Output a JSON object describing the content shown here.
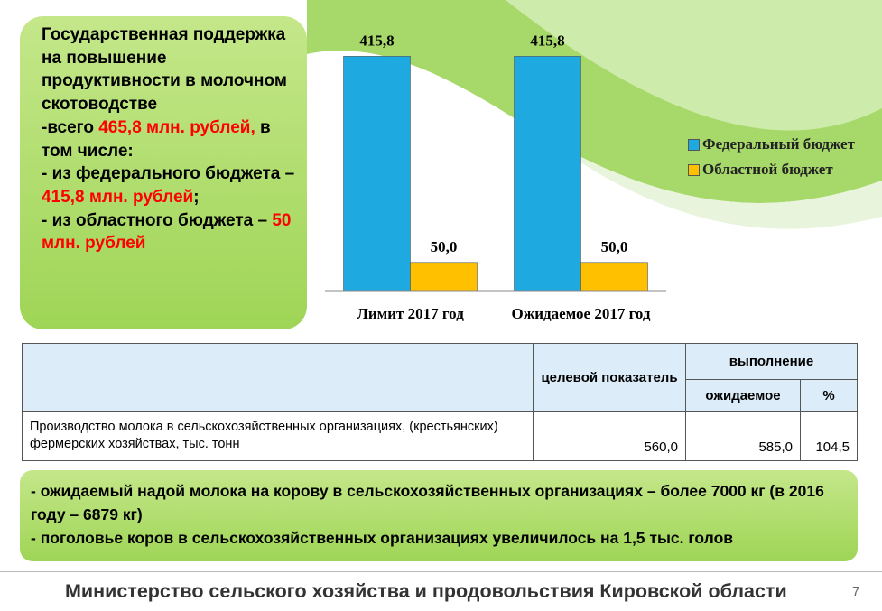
{
  "info_box": {
    "paragraphs": [
      [
        {
          "text": "Государственная поддержка на повышение продуктивности в молочном скотоводстве",
          "color": "#000000"
        }
      ],
      [
        {
          "text": "-всего ",
          "color": "#000000"
        },
        {
          "text": "465,8 млн. рублей,",
          "color": "#ff0000"
        },
        {
          "text": " в том числе:",
          "color": "#000000"
        }
      ],
      [
        {
          "text": "- из федерального бюджета – ",
          "color": "#000000"
        },
        {
          "text": "415,8 млн. рублей",
          "color": "#ff0000"
        },
        {
          "text": ";",
          "color": "#000000"
        }
      ],
      [
        {
          "text": "- из областного бюджета – ",
          "color": "#000000"
        },
        {
          "text": "50 млн. рублей",
          "color": "#ff0000"
        }
      ]
    ]
  },
  "chart_data": {
    "type": "bar",
    "categories": [
      "Лимит 2017 год",
      "Ожидаемое 2017 год"
    ],
    "series": [
      {
        "name": "Федеральный бюджет",
        "color": "#1ea9e1",
        "values": [
          415.8,
          415.8
        ],
        "value_labels": [
          "415,8",
          "415,8"
        ]
      },
      {
        "name": "Областной бюджет",
        "color": "#ffc000",
        "values": [
          50,
          50
        ],
        "value_labels": [
          "50,0",
          "50,0"
        ]
      }
    ],
    "ylim": [
      0,
      450
    ],
    "legend": "right"
  },
  "table": {
    "header": [
      "целевой показатель",
      "выполнение"
    ],
    "subheader": [
      "ожидаемое",
      "%"
    ],
    "rows": [
      [
        "Производство молока в сельскохозяйственных организациях, (крестьянских) фермерских хозяйствах, тыс. тонн",
        "560,0",
        "585,0",
        "104,5"
      ]
    ]
  },
  "note_box": {
    "paragraphs": [
      "- ожидаемый надой молока на корову в сельскохозяйственных организациях  – более 7000 кг (в 2016 году – 6879 кг)",
      "- поголовье коров в сельскохозяйственных организациях увеличилось на 1,5 тыс. голов"
    ]
  },
  "footer": {
    "title": "Министерство  сельского хозяйства и продовольствия Кировской области",
    "page": "7"
  }
}
